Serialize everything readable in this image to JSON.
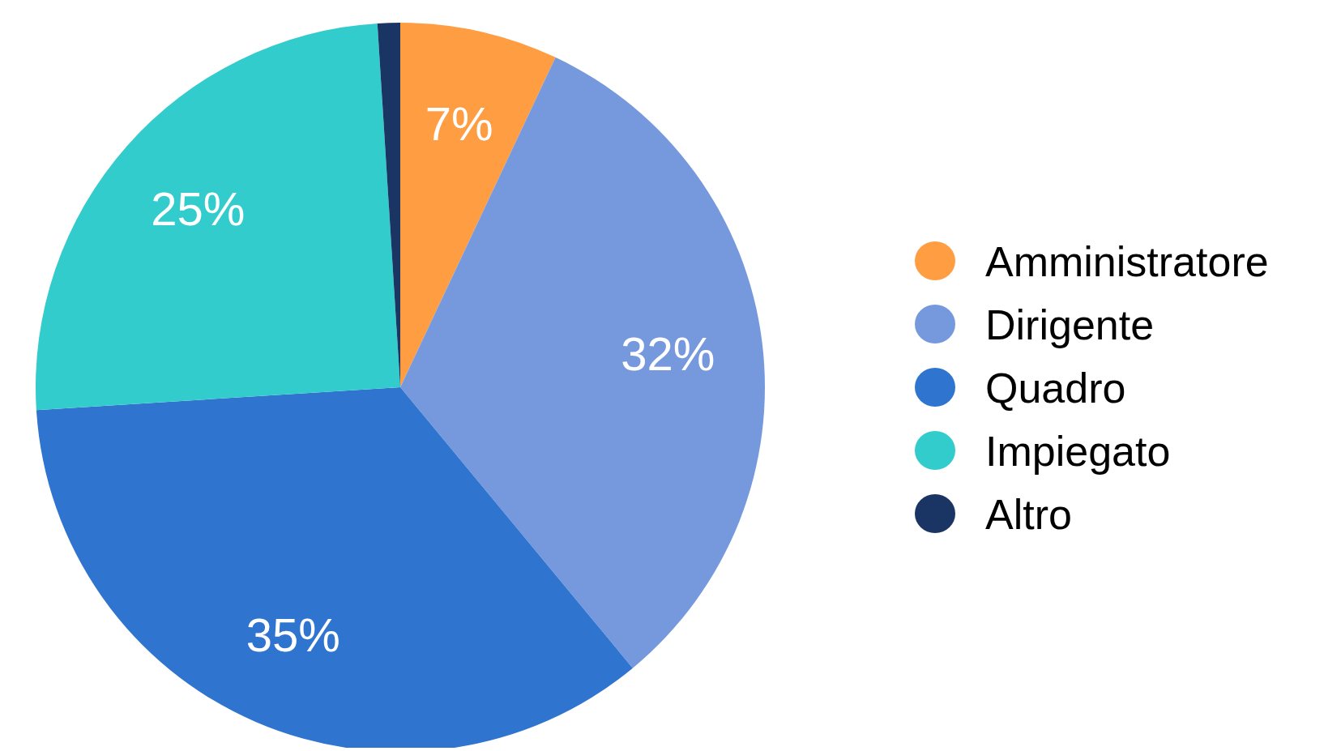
{
  "chart_data": {
    "type": "pie",
    "categories": [
      "Amministratore",
      "Dirigente",
      "Quadro",
      "Impiegato",
      "Altro"
    ],
    "values": [
      7,
      32,
      35,
      25,
      1
    ],
    "colors": [
      "#ff9d42",
      "#7699dd",
      "#2f74cf",
      "#33cccc",
      "#1a3464"
    ],
    "value_labels": [
      "7%",
      "32%",
      "35%",
      "25%",
      null
    ],
    "legend": "right"
  }
}
